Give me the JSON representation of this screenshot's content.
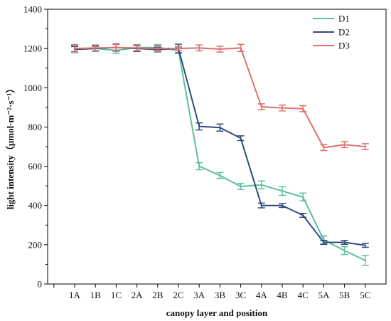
{
  "chart_data": {
    "type": "line",
    "xlabel": "canopy layer and position",
    "ylabel": "light intensity（μmol·m⁻²·s⁻¹）",
    "categories": [
      "1A",
      "1B",
      "1C",
      "2A",
      "2B",
      "2C",
      "3A",
      "3B",
      "3C",
      "4A",
      "4B",
      "4C",
      "5A",
      "5B",
      "5C"
    ],
    "ylim": [
      0,
      1400
    ],
    "yticks": [
      0,
      200,
      400,
      600,
      800,
      1000,
      1200,
      1400
    ],
    "grid": false,
    "legend_position": "top-right",
    "series": [
      {
        "name": "D1",
        "color": "#5cbf9f",
        "values": [
          1200,
          1200,
          1190,
          1205,
          1205,
          1190,
          600,
          553,
          497,
          505,
          474,
          443,
          225,
          170,
          120
        ],
        "errors": [
          15,
          15,
          15,
          15,
          15,
          15,
          18,
          15,
          15,
          20,
          22,
          20,
          20,
          20,
          25
        ]
      },
      {
        "name": "D2",
        "color": "#2f4a7c",
        "values": [
          1195,
          1200,
          1205,
          1200,
          1195,
          1200,
          803,
          797,
          743,
          400,
          400,
          350,
          212,
          212,
          197
        ],
        "errors": [
          15,
          12,
          18,
          15,
          12,
          22,
          18,
          18,
          12,
          12,
          10,
          10,
          10,
          10,
          10
        ]
      },
      {
        "name": "D3",
        "color": "#e07070",
        "values": [
          1200,
          1203,
          1205,
          1203,
          1200,
          1200,
          1203,
          1197,
          1203,
          903,
          897,
          893,
          695,
          710,
          700
        ],
        "errors": [
          20,
          15,
          15,
          15,
          15,
          10,
          15,
          15,
          18,
          15,
          15,
          15,
          15,
          15,
          15
        ]
      }
    ]
  }
}
